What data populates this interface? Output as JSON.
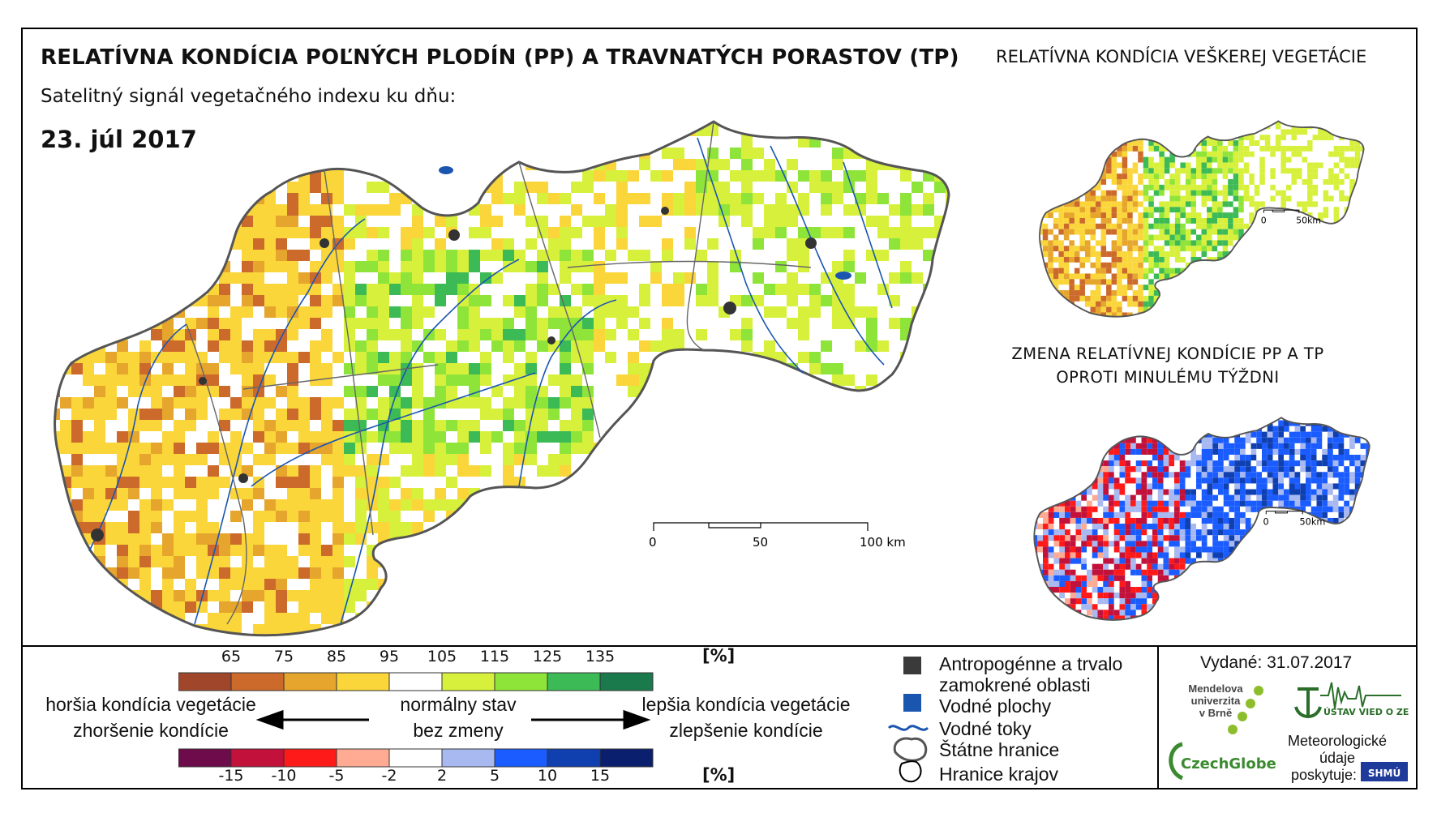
{
  "header": {
    "title": "RELATÍVNA KONDÍCIA POĽNÝCH PLODÍN (PP) A TRAVNATÝCH PORASTOV (TP)",
    "subtitle": "Satelitný signál vegetačného indexu ku dňu:",
    "date": "23. júl 2017",
    "right_title": "RELATÍVNA KONDÍCIA VEŠKEREJ VEGETÁCIE",
    "change_title_line1": "ZMENA RELATÍVNEJ KONDÍCIE PP A TP",
    "change_title_line2": "OPROTI MINULÉMU TÝŽDNI"
  },
  "main_scale": {
    "v0": "0",
    "v50": "50",
    "v100": "100 km"
  },
  "small_scale": {
    "v0": "0",
    "v50": "50km"
  },
  "legend": {
    "condition_ticks": [
      "65",
      "75",
      "85",
      "95",
      "105",
      "115",
      "125",
      "135"
    ],
    "condition_unit": "[%]",
    "condition_colors": [
      "#a0472b",
      "#cc6a2c",
      "#e6a52c",
      "#fad63a",
      "#ffffff",
      "#d7f03c",
      "#8fe43a",
      "#3cba56",
      "#1b7a4c"
    ],
    "change_ticks": [
      "-15",
      "-10",
      "-5",
      "-2",
      "2",
      "5",
      "10",
      "15"
    ],
    "change_unit": "[%]",
    "change_colors": [
      "#6e0b4a",
      "#c2123c",
      "#ff1a1a",
      "#ffab94",
      "#ffffff",
      "#a8b8f0",
      "#1a5cff",
      "#1040b0",
      "#0a1f6e"
    ],
    "left_label_1": "horšia kondícia vegetácie",
    "left_label_2": "zhoršenie kondície",
    "center_label_1": "normálny stav",
    "center_label_2": "bez zmeny",
    "right_label_1": "lepšia kondícia vegetácie",
    "right_label_2": "zlepšenie kondície"
  },
  "map_legend": {
    "anthropogenic_1": "Antropogénne a trvalo",
    "anthropogenic_2": "zamokrené oblasti",
    "water_bodies": "Vodné plochy",
    "rivers": "Vodné toky",
    "state_border": "Štátne hranice",
    "region_border": "Hranice krajov"
  },
  "credits": {
    "issued": "Vydané: 31.07.2017",
    "mendel_1": "Mendelova",
    "mendel_2": "univerzita",
    "mendel_3": "v Brně",
    "czechglobe": "CzechGlobe",
    "uvoz": "ÚSTAV VIED O ZEMI",
    "meteo_1": "Meteorologické",
    "meteo_2": "údaje",
    "meteo_3": "poskytuje:",
    "shmu": "SHMÚ"
  }
}
